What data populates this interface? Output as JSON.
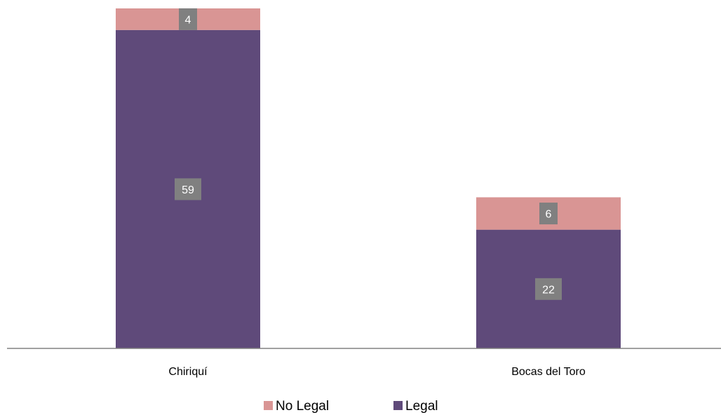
{
  "chart_data": {
    "type": "bar",
    "stacked": true,
    "categories": [
      "Chiriquí",
      "Bocas del Toro"
    ],
    "series": [
      {
        "name": "Legal",
        "values": [
          59,
          22
        ],
        "color": "#5f4a7a"
      },
      {
        "name": "No Legal",
        "values": [
          4,
          6
        ],
        "color": "#d99594"
      }
    ],
    "ylim": [
      0,
      63
    ],
    "grid": false,
    "legend": "bottom",
    "legend_order": [
      "No Legal",
      "Legal"
    ],
    "data_label_bg": "#808080",
    "axis_color": "#808080"
  }
}
